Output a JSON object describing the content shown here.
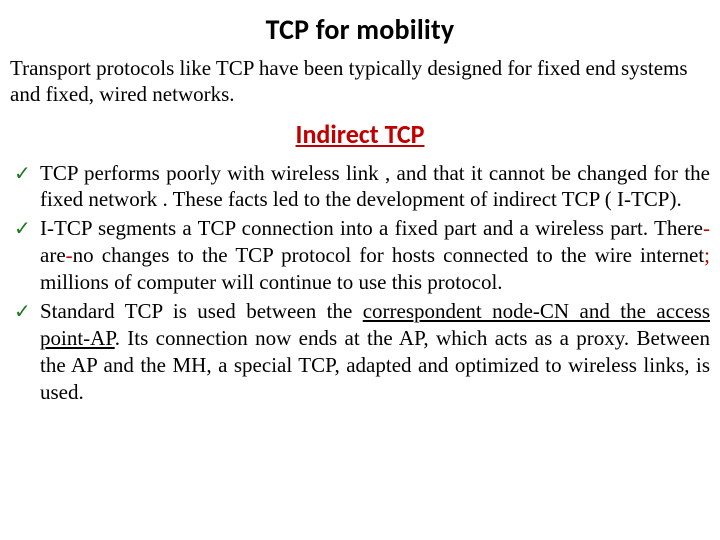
{
  "title": "TCP for mobility",
  "intro": "Transport protocols like TCP have been typically designed for fixed end systems and fixed, wired networks.",
  "subtitle": "Indirect TCP",
  "accent_color": "#c00000",
  "check_color": "#1a7a1a",
  "bullets": {
    "b1": "TCP performs poorly with wireless link , and that it cannot be changed for the fixed network . These facts led to the development of indirect TCP ( I-TCP).",
    "b2_a": "I-TCP segments a TCP connection into a fixed part and a wireless part. There",
    "b2_dash1": "-",
    "b2_are": "are",
    "b2_dash2": "-",
    "b2_no": "no",
    "b2_b": " changes to the TCP protocol for hosts connected to the wire internet",
    "b2_semi": ";",
    "b2_c": " millions of computer will continue to use this protocol.",
    "b3_a": "Standard TCP is used between the ",
    "b3_u1": "correspondent node-CN and the access point-AP",
    "b3_b": ". Its connection now ends at the AP, which acts as a proxy. Between the AP and the MH, a special TCP, adapted and optimized to wireless links, is used."
  }
}
